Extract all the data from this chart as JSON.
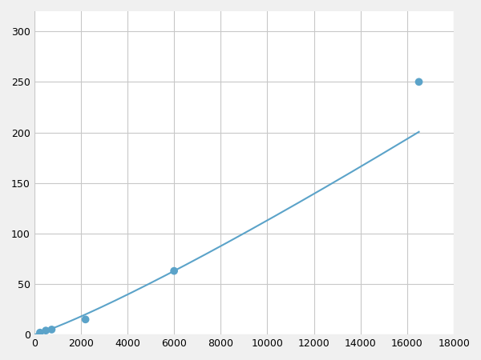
{
  "x_points": [
    250,
    500,
    750,
    2200,
    6000,
    6500,
    16500
  ],
  "y_points": [
    2,
    4,
    5,
    15,
    63,
    65,
    250
  ],
  "marker_x": [
    250,
    500,
    750,
    2200,
    6000,
    16500
  ],
  "marker_y": [
    2,
    4,
    5,
    15,
    63,
    250
  ],
  "line_color": "#5ba3c9",
  "marker_color": "#5ba3c9",
  "marker_size": 7,
  "xlim": [
    0,
    18000
  ],
  "ylim": [
    0,
    320
  ],
  "xticks": [
    0,
    2000,
    4000,
    6000,
    8000,
    10000,
    12000,
    14000,
    16000,
    18000
  ],
  "yticks": [
    0,
    50,
    100,
    150,
    200,
    250,
    300
  ],
  "grid_color": "#c8c8c8",
  "background_color": "#ffffff",
  "fig_bg_color": "#f0f0f0"
}
